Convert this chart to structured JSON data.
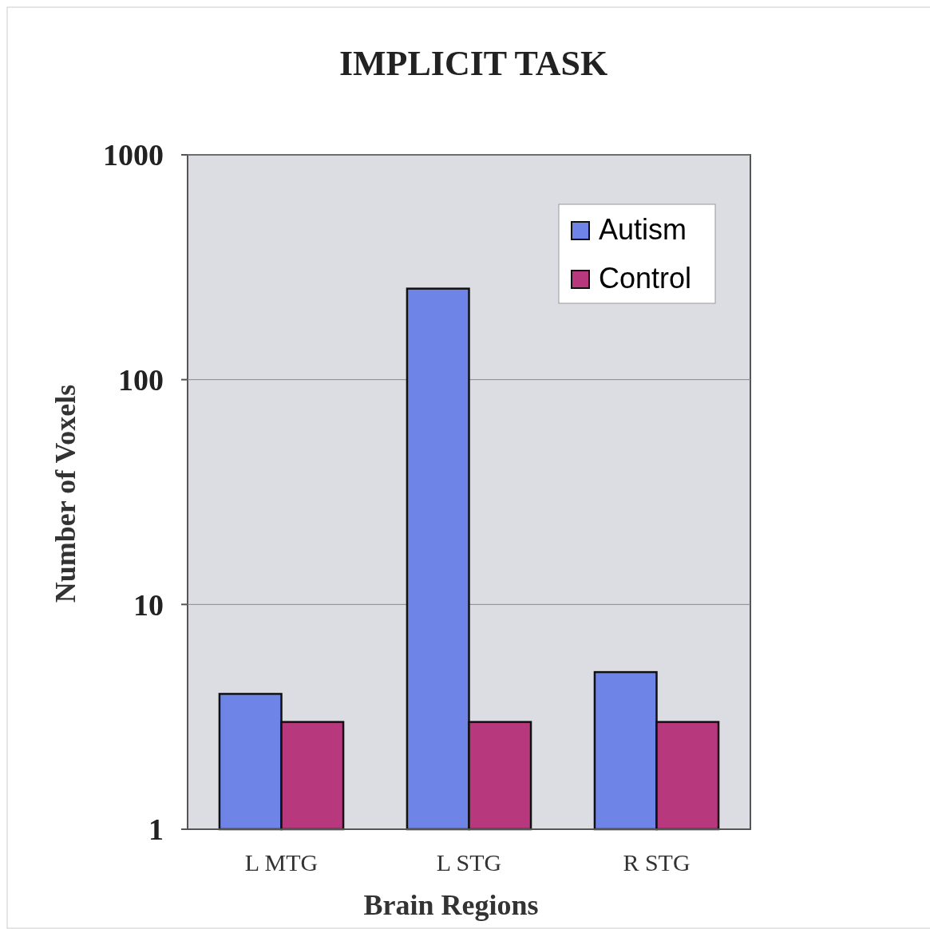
{
  "chart_data": {
    "type": "bar",
    "title": "IMPLICIT TASK",
    "xlabel": "Brain Regions",
    "ylabel": "Number of Voxels",
    "categories": [
      "L MTG",
      "L STG",
      "R STG"
    ],
    "series": [
      {
        "name": "Autism",
        "color": "#6e84e6",
        "values": [
          4,
          254,
          5
        ]
      },
      {
        "name": "Control",
        "color": "#b8387e",
        "values": [
          3,
          3,
          3
        ]
      }
    ],
    "log": true,
    "ylim": [
      1,
      1000
    ],
    "yticks": [
      1,
      10,
      100,
      1000
    ],
    "grid": "y",
    "legend": "top right"
  }
}
